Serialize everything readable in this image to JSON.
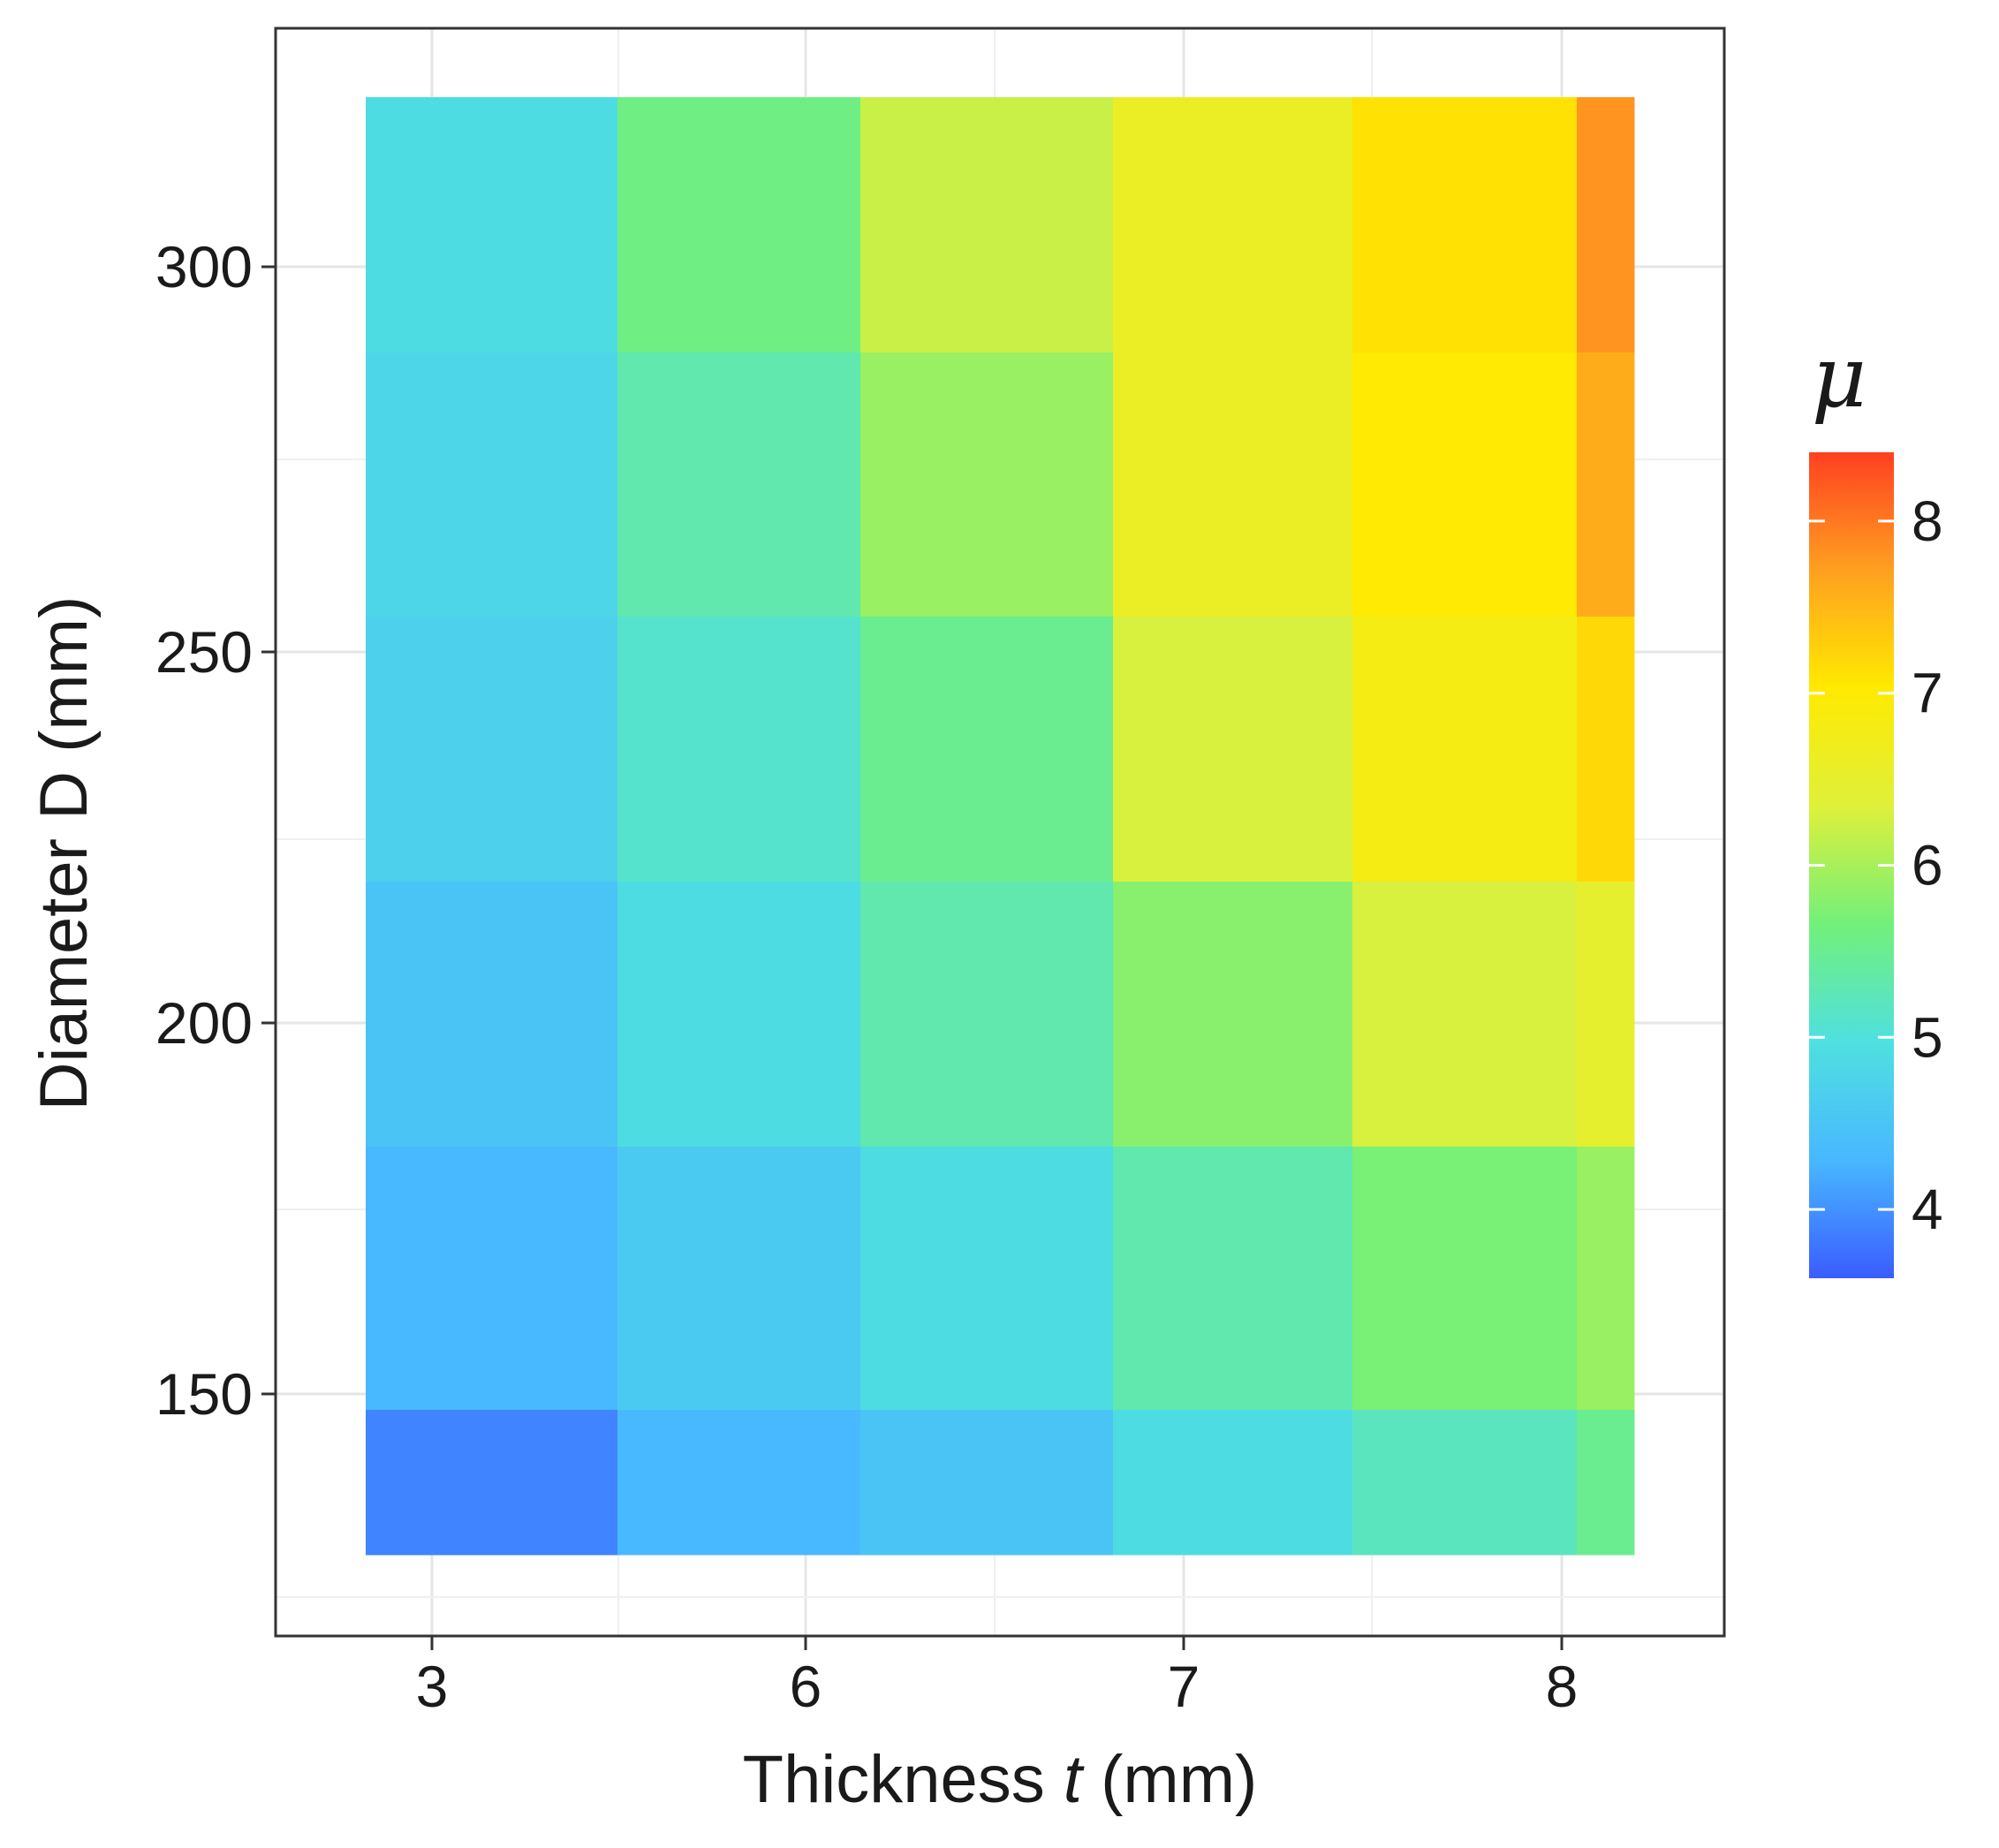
{
  "chart_data": {
    "type": "heatmap",
    "x_label_parts": [
      "Thickness ",
      "t",
      " (mm)"
    ],
    "y_label": "Diameter D (mm)",
    "legend_title": "μ",
    "x_tick_labels": [
      "3",
      "6",
      "7",
      "8"
    ],
    "y_tick_labels": [
      "150",
      "200",
      "250",
      "300"
    ],
    "legend_tick_labels": [
      "4",
      "5",
      "6",
      "7",
      "8"
    ],
    "legend_ticks": [
      4,
      5,
      6,
      7,
      8
    ],
    "colorscale_range": [
      3.6,
      8.4
    ],
    "colorscale": [
      "#3a5cff",
      "#48b8ff",
      "#4fe0e0",
      "#72f07a",
      "#dff03a",
      "#ffea00",
      "#ffa020",
      "#ff4020"
    ],
    "columns": [
      "3",
      "6",
      "6.5",
      "7",
      "7.5",
      "8"
    ],
    "rows": [
      "300",
      "270",
      "240",
      "200",
      "165",
      "140"
    ],
    "values": [
      [
        4.9,
        5.6,
        6.2,
        6.6,
        7.1,
        7.8
      ],
      [
        4.8,
        5.3,
        5.9,
        6.6,
        7.0,
        7.6
      ],
      [
        4.7,
        5.1,
        5.5,
        6.3,
        6.8,
        7.2
      ],
      [
        4.5,
        4.9,
        5.3,
        5.8,
        6.3,
        6.5
      ],
      [
        4.3,
        4.6,
        4.9,
        5.3,
        5.7,
        5.9
      ],
      [
        3.9,
        4.3,
        4.5,
        4.9,
        5.2,
        5.5
      ]
    ]
  }
}
